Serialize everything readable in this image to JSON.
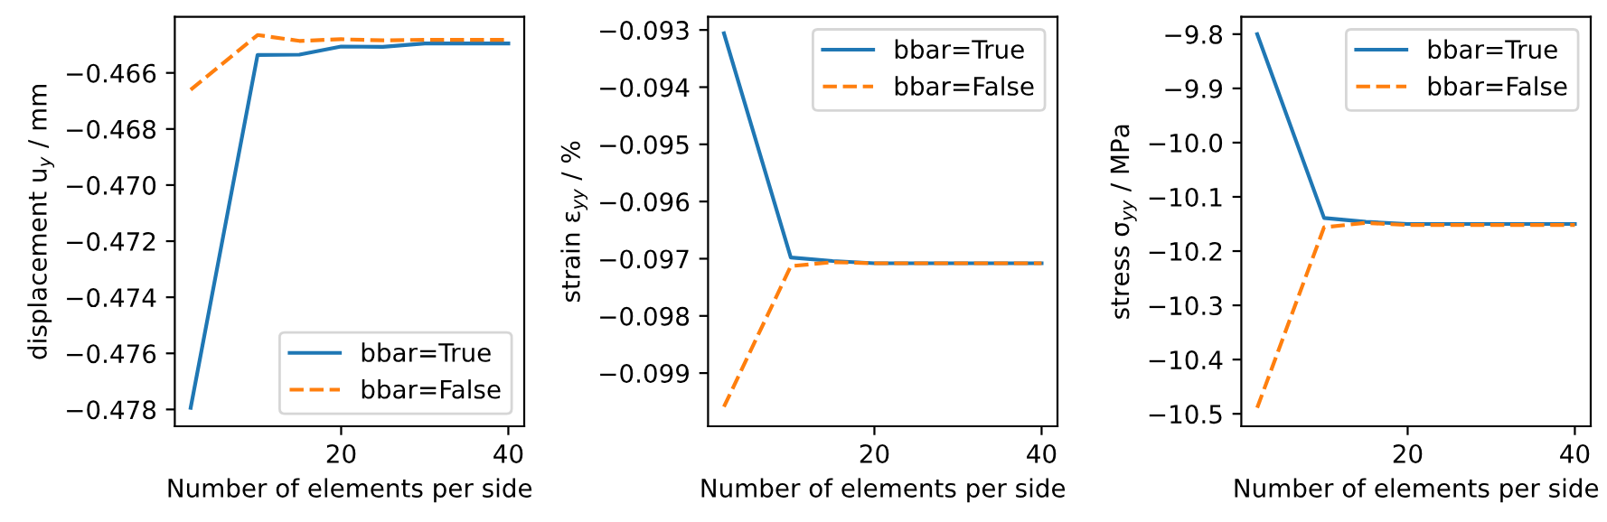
{
  "chart_data": [
    {
      "type": "line",
      "xlabel": "Number of elements per side",
      "ylabel": "displacement u$_{y}$ / mm",
      "legend": "lower right",
      "grid": false,
      "xlim": [
        0.1,
        41.9
      ],
      "xticks": [
        20,
        40
      ],
      "ylim": [
        -0.4786,
        -0.464
      ],
      "yticks": [
        {
          "value": -0.466,
          "label": "−0.466"
        },
        {
          "value": -0.468,
          "label": "−0.468"
        },
        {
          "value": -0.47,
          "label": "−0.470"
        },
        {
          "value": -0.472,
          "label": "−0.472"
        },
        {
          "value": -0.474,
          "label": "−0.474"
        },
        {
          "value": -0.476,
          "label": "−0.476"
        },
        {
          "value": -0.478,
          "label": "−0.478"
        }
      ],
      "x": [
        2,
        10,
        15,
        20,
        25,
        30,
        35,
        40
      ],
      "series": [
        {
          "name": "bbar=True",
          "color": "#1f77b4",
          "line_style": "solid",
          "values": [
            -0.47794,
            -0.46536,
            -0.46535,
            -0.46506,
            -0.46507,
            -0.46495,
            -0.46495,
            -0.46495
          ]
        },
        {
          "name": "bbar=False",
          "color": "#ff7f0e",
          "line_style": "dashed",
          "values": [
            -0.4666,
            -0.46465,
            -0.46486,
            -0.4648,
            -0.46484,
            -0.46482,
            -0.46482,
            -0.46482
          ]
        }
      ]
    },
    {
      "type": "line",
      "xlabel": "Number of elements per side",
      "ylabel": "strain ε$_{yy}$ / %",
      "legend": "upper right",
      "grid": false,
      "xlim": [
        0.1,
        41.9
      ],
      "xticks": [
        20,
        40
      ],
      "ylim": [
        -0.09993,
        -0.09277
      ],
      "yticks": [
        {
          "value": -0.093,
          "label": "−0.093"
        },
        {
          "value": -0.094,
          "label": "−0.094"
        },
        {
          "value": -0.095,
          "label": "−0.095"
        },
        {
          "value": -0.096,
          "label": "−0.096"
        },
        {
          "value": -0.097,
          "label": "−0.097"
        },
        {
          "value": -0.098,
          "label": "−0.098"
        },
        {
          "value": -0.099,
          "label": "−0.099"
        }
      ],
      "x": [
        2,
        10,
        15,
        20,
        25,
        30,
        35,
        40
      ],
      "series": [
        {
          "name": "bbar=True",
          "color": "#1f77b4",
          "line_style": "solid",
          "values": [
            -0.09306,
            -0.09698,
            -0.09704,
            -0.09708,
            -0.09708,
            -0.09708,
            -0.09708,
            -0.09708
          ]
        },
        {
          "name": "bbar=False",
          "color": "#ff7f0e",
          "line_style": "dashed",
          "values": [
            -0.09959,
            -0.09713,
            -0.09706,
            -0.09708,
            -0.09708,
            -0.09708,
            -0.09708,
            -0.09708
          ]
        }
      ]
    },
    {
      "type": "line",
      "xlabel": "Number of elements per side",
      "ylabel": "stress σ$_{yy}$ / MPa",
      "legend": "upper right",
      "grid": false,
      "xlim": [
        0.1,
        41.9
      ],
      "xticks": [
        20,
        40
      ],
      "ylim": [
        -10.523,
        -9.768
      ],
      "yticks": [
        {
          "value": -9.8,
          "label": "−9.8"
        },
        {
          "value": -9.9,
          "label": "−9.9"
        },
        {
          "value": -10.0,
          "label": "−10.0"
        },
        {
          "value": -10.1,
          "label": "−10.1"
        },
        {
          "value": -10.2,
          "label": "−10.2"
        },
        {
          "value": -10.3,
          "label": "−10.3"
        },
        {
          "value": -10.4,
          "label": "−10.4"
        },
        {
          "value": -10.5,
          "label": "−10.5"
        }
      ],
      "x": [
        2,
        10,
        15,
        20,
        25,
        30,
        35,
        40
      ],
      "series": [
        {
          "name": "bbar=True",
          "color": "#1f77b4",
          "line_style": "solid",
          "values": [
            -9.8,
            -10.139,
            -10.146,
            -10.15,
            -10.15,
            -10.15,
            -10.15,
            -10.15
          ]
        },
        {
          "name": "bbar=False",
          "color": "#ff7f0e",
          "line_style": "dashed",
          "values": [
            -10.489,
            -10.156,
            -10.148,
            -10.152,
            -10.152,
            -10.152,
            -10.152,
            -10.152
          ]
        }
      ]
    }
  ]
}
